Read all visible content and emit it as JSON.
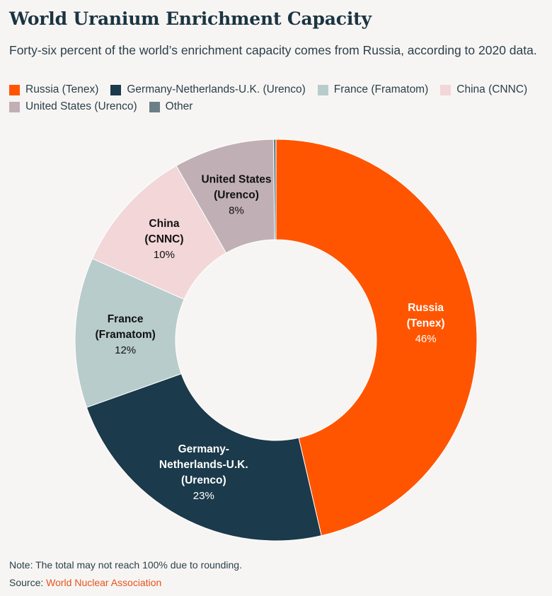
{
  "title": "World Uranium Enrichment Capacity",
  "subtitle": "Forty-six percent of the world’s enrichment capacity comes from Russia, according to 2020 data.",
  "note": "Note: The total may not reach 100% due to rounding.",
  "source_label": "Source: ",
  "source_link": "World Nuclear Association",
  "chart_data": {
    "type": "pie",
    "variant": "donut",
    "legend_placement": "top",
    "slices": [
      {
        "name": "Russia (Tenex)",
        "label_lines": [
          "Russia",
          "(Tenex)"
        ],
        "value": 46,
        "display": "46%",
        "color": "#ff5500",
        "label_color": "#ffffff"
      },
      {
        "name": "Germany-Netherlands-U.K. (Urenco)",
        "label_lines": [
          "Germany-",
          "Netherlands-U.K.",
          "(Urenco)"
        ],
        "value": 23,
        "display": "23%",
        "color": "#1b3a4b",
        "label_color": "#ffffff"
      },
      {
        "name": "France (Framatom)",
        "label_lines": [
          "France",
          "(Framatom)"
        ],
        "value": 12,
        "display": "12%",
        "color": "#b8cccc",
        "label_color": "#111111"
      },
      {
        "name": "China (CNNC)",
        "label_lines": [
          "China",
          "(CNNC)"
        ],
        "value": 10,
        "display": "10%",
        "color": "#f2d6d8",
        "label_color": "#111111"
      },
      {
        "name": "United States (Urenco)",
        "label_lines": [
          "United States",
          "(Urenco)"
        ],
        "value": 8,
        "display": "8%",
        "color": "#c0b0b5",
        "label_color": "#111111"
      },
      {
        "name": "Other",
        "label_lines": [],
        "value": 0.2,
        "display": "",
        "color": "#6b7f86",
        "label_color": "#111111"
      }
    ]
  }
}
